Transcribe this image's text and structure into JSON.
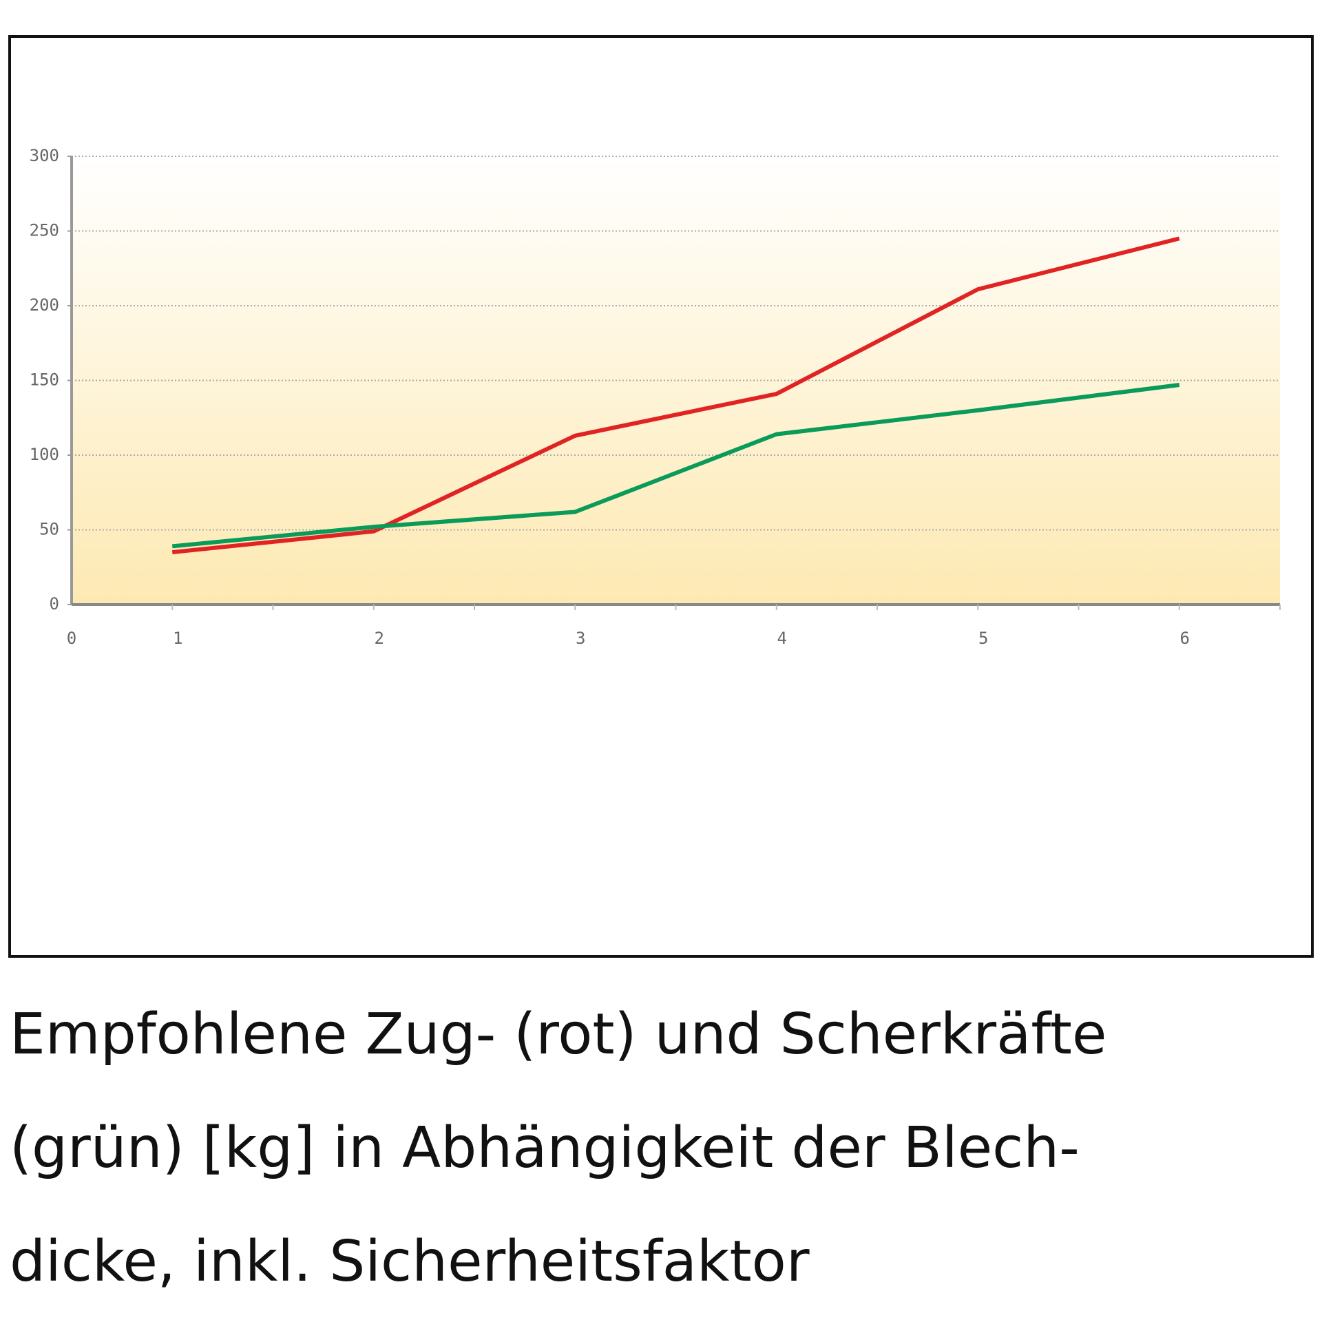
{
  "chart_data": {
    "type": "line",
    "categories": [
      "1",
      "2",
      "3",
      "4",
      "5",
      "6"
    ],
    "x_origin_label": "0",
    "series": [
      {
        "name": "rot",
        "color": "#e02424",
        "values": [
          35,
          49,
          113,
          141,
          211,
          245
        ]
      },
      {
        "name": "grün",
        "color": "#0a9a5a",
        "values": [
          39,
          52,
          62,
          114,
          130,
          147
        ]
      }
    ],
    "ylim": [
      0,
      300
    ],
    "yticks": [
      0,
      50,
      100,
      150,
      200,
      250,
      300
    ],
    "grid": true
  },
  "caption": [
    "Empfohlene Zug- (rot) und Scherkräfte",
    "(grün) [kg] in Abhängigkeit der Blech-",
    "dicke, inkl. Sicherheitsfaktor"
  ]
}
